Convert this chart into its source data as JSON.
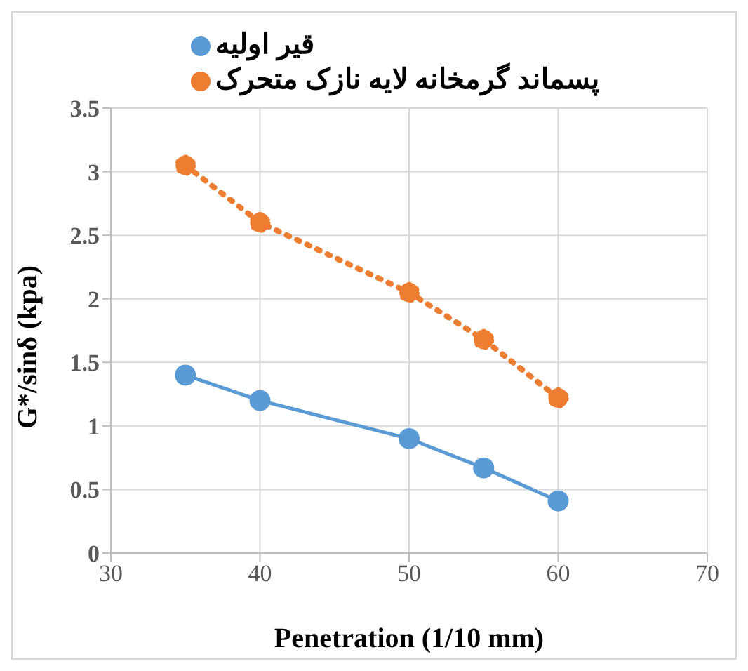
{
  "chart_data": {
    "type": "line",
    "xlabel": "Penetration (1/10 mm)",
    "ylabel": "G*/sinδ (kpa)",
    "x": [
      35,
      40,
      50,
      55,
      60
    ],
    "series": [
      {
        "name": "قیر اولیه",
        "color": "#5b9bd5",
        "values": [
          1.4,
          1.2,
          0.9,
          0.67,
          0.41
        ],
        "line_style": "solid"
      },
      {
        "name": "پسماند گرمخانه لایه نازک متحرک",
        "color": "#ed7d31",
        "values": [
          3.05,
          2.6,
          2.05,
          1.68,
          1.22
        ],
        "line_style": "dotted"
      }
    ],
    "xlim": [
      30,
      70
    ],
    "xticks": [
      30,
      40,
      50,
      60,
      70
    ],
    "ylim": [
      0,
      3.5
    ],
    "yticks": [
      0,
      0.5,
      1,
      1.5,
      2,
      2.5,
      3,
      3.5
    ],
    "grid": true,
    "legend": "top",
    "marker": "circle"
  }
}
